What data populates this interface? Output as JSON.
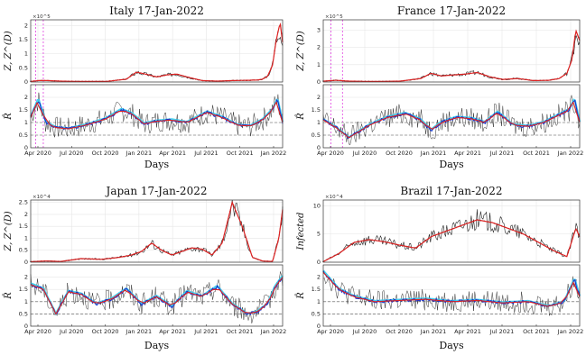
{
  "chart_data": [
    {
      "type": "line",
      "title": "Italy 17-Jan-2022",
      "top": {
        "ylabel": "Z, Z^(D)",
        "scale_label": "×10^5",
        "ylim": [
          0,
          2.2
        ],
        "yticks": [
          "0",
          "0.5",
          "1",
          "1.5",
          "2"
        ]
      },
      "bottom": {
        "ylabel": "R̂",
        "ylim": [
          0,
          2.5
        ],
        "yticks": [
          "0",
          "0.5",
          "1",
          "1.5",
          "2"
        ],
        "xlabel": "Days"
      },
      "xticks": [
        "Apr 2020",
        "Jul 2020",
        "Oct 2020",
        "Jan 2021",
        "Apr 2021",
        "Jul 2021",
        "Oct 2021",
        "Jan 2022"
      ],
      "infected_series": {
        "x": [
          0,
          0.03,
          0.07,
          0.12,
          0.2,
          0.3,
          0.38,
          0.42,
          0.46,
          0.5,
          0.54,
          0.58,
          0.62,
          0.68,
          0.74,
          0.8,
          0.86,
          0.9,
          0.92,
          0.94,
          0.96,
          0.975,
          0.99,
          1.0
        ],
        "y": [
          0.02,
          0.05,
          0.05,
          0.03,
          0.02,
          0.02,
          0.1,
          0.35,
          0.27,
          0.18,
          0.25,
          0.28,
          0.18,
          0.05,
          0.03,
          0.05,
          0.06,
          0.07,
          0.1,
          0.2,
          0.6,
          1.5,
          2.1,
          1.4
        ]
      },
      "R_series": {
        "x": [
          0,
          0.03,
          0.06,
          0.1,
          0.15,
          0.22,
          0.3,
          0.36,
          0.4,
          0.45,
          0.5,
          0.56,
          0.62,
          0.7,
          0.76,
          0.82,
          0.87,
          0.92,
          0.96,
          0.98,
          1.0
        ],
        "y": [
          1.2,
          1.9,
          1.0,
          0.8,
          0.75,
          0.9,
          1.15,
          1.5,
          1.35,
          0.95,
          1.05,
          1.1,
          1.0,
          1.4,
          1.2,
          0.9,
          0.85,
          1.1,
          1.5,
          1.9,
          1.0
        ]
      }
    },
    {
      "type": "line",
      "title": "France 17-Jan-2022",
      "top": {
        "ylabel": "Z, Z^(D)",
        "scale_label": "×10^5",
        "ylim": [
          0,
          3.6
        ],
        "yticks": [
          "0",
          "1",
          "2",
          "3"
        ]
      },
      "bottom": {
        "ylabel": "R̂",
        "ylim": [
          0,
          2.5
        ],
        "yticks": [
          "0",
          "0.5",
          "1",
          "1.5",
          "2"
        ],
        "xlabel": "Days"
      },
      "xticks": [
        "Apr 2020",
        "Jul 2020",
        "Oct 2020",
        "Jan 2021",
        "Apr 2021",
        "Jul 2021",
        "Oct 2021",
        "Jan 2022"
      ],
      "infected_series": {
        "x": [
          0,
          0.05,
          0.1,
          0.2,
          0.3,
          0.38,
          0.42,
          0.46,
          0.5,
          0.55,
          0.6,
          0.65,
          0.7,
          0.76,
          0.82,
          0.88,
          0.92,
          0.95,
          0.97,
          0.985,
          1.0
        ],
        "y": [
          0.05,
          0.1,
          0.05,
          0.03,
          0.05,
          0.2,
          0.5,
          0.35,
          0.4,
          0.45,
          0.55,
          0.3,
          0.15,
          0.2,
          0.08,
          0.1,
          0.2,
          0.5,
          1.3,
          3.0,
          2.4
        ]
      },
      "R_series": {
        "x": [
          0,
          0.05,
          0.1,
          0.18,
          0.25,
          0.32,
          0.38,
          0.42,
          0.46,
          0.52,
          0.58,
          0.63,
          0.68,
          0.74,
          0.8,
          0.86,
          0.92,
          0.96,
          0.98,
          1.0
        ],
        "y": [
          1.1,
          0.8,
          0.4,
          0.9,
          1.2,
          1.35,
          1.1,
          0.7,
          1.0,
          1.2,
          1.15,
          1.0,
          1.4,
          0.9,
          0.85,
          1.0,
          1.3,
          1.5,
          1.9,
          1.0
        ]
      }
    },
    {
      "type": "line",
      "title": "Japan 17-Jan-2022",
      "top": {
        "ylabel": "Z, Z^(D)",
        "scale_label": "×10^4",
        "ylim": [
          0,
          2.6
        ],
        "yticks": [
          "0",
          "0.5",
          "1",
          "1.5",
          "2",
          "2.5"
        ]
      },
      "bottom": {
        "ylabel": "R̂",
        "ylim": [
          0,
          2.5
        ],
        "yticks": [
          "0",
          "0.5",
          "1",
          "1.5",
          "2"
        ],
        "xlabel": "Days"
      },
      "xticks": [
        "Apr 2020",
        "Jul 2020",
        "Oct 2020",
        "Jan 2021",
        "Apr 2021",
        "Jul 2021",
        "Oct 2021",
        "Jan 2022"
      ],
      "infected_series": {
        "x": [
          0,
          0.06,
          0.12,
          0.2,
          0.28,
          0.35,
          0.4,
          0.44,
          0.48,
          0.52,
          0.56,
          0.6,
          0.64,
          0.68,
          0.72,
          0.76,
          0.8,
          0.84,
          0.88,
          0.92,
          0.96,
          0.985,
          1.0
        ],
        "y": [
          0.02,
          0.05,
          0.03,
          0.15,
          0.12,
          0.2,
          0.3,
          0.45,
          0.8,
          0.5,
          0.3,
          0.45,
          0.6,
          0.55,
          0.3,
          0.8,
          2.5,
          1.5,
          0.2,
          0.05,
          0.03,
          1.0,
          2.2
        ]
      },
      "R_series": {
        "x": [
          0,
          0.05,
          0.1,
          0.15,
          0.2,
          0.26,
          0.32,
          0.38,
          0.44,
          0.5,
          0.56,
          0.62,
          0.68,
          0.74,
          0.8,
          0.86,
          0.9,
          0.94,
          0.97,
          1.0
        ],
        "y": [
          1.7,
          1.5,
          0.5,
          1.4,
          1.3,
          0.9,
          1.1,
          1.5,
          0.9,
          1.2,
          0.8,
          1.4,
          1.2,
          1.6,
          0.9,
          0.5,
          0.6,
          0.9,
          1.6,
          2.0
        ]
      }
    },
    {
      "type": "line",
      "title": "Brazil 17-Jan-2022",
      "top": {
        "ylabel": "Infected",
        "scale_label": "×10^4",
        "ylim": [
          0,
          11
        ],
        "yticks": [
          "0",
          "5",
          "10"
        ]
      },
      "bottom": {
        "ylabel": "R̂",
        "ylim": [
          0,
          2.5
        ],
        "yticks": [
          "0",
          "0.5",
          "1",
          "1.5",
          "2"
        ],
        "xlabel": "Days"
      },
      "xticks": [
        "Apr 2020",
        "Jul 2020",
        "Oct 2020",
        "Jan 2021",
        "Apr 2021",
        "Jul 2021",
        "Oct 2021",
        "Jan 2022"
      ],
      "infected_series": {
        "x": [
          0,
          0.06,
          0.12,
          0.18,
          0.24,
          0.3,
          0.36,
          0.42,
          0.48,
          0.54,
          0.6,
          0.66,
          0.72,
          0.78,
          0.84,
          0.9,
          0.95,
          0.985,
          1.0
        ],
        "y": [
          0.1,
          1.5,
          3.5,
          4.0,
          3.6,
          3.0,
          2.5,
          4.5,
          5.5,
          6.5,
          7.5,
          7.0,
          6.0,
          5.0,
          3.5,
          2.0,
          1.0,
          6.0,
          4.5
        ]
      },
      "R_series": {
        "x": [
          0,
          0.06,
          0.12,
          0.2,
          0.3,
          0.4,
          0.5,
          0.6,
          0.7,
          0.8,
          0.88,
          0.94,
          0.98,
          1.0
        ],
        "y": [
          2.2,
          1.5,
          1.2,
          1.0,
          1.05,
          1.1,
          1.0,
          1.05,
          0.95,
          1.0,
          0.8,
          1.0,
          1.9,
          1.2
        ]
      }
    }
  ]
}
